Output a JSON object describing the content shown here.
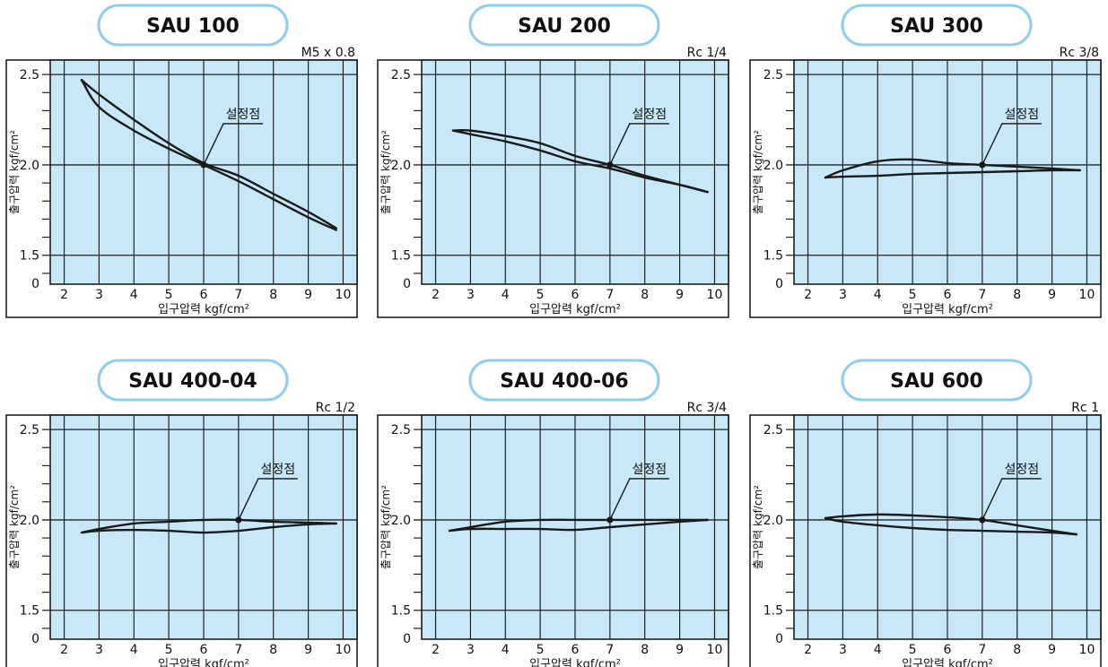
{
  "colors": {
    "plot_bg": "#c8e8f8",
    "pill_border": "#8fcdee",
    "line": "#1a1a1a",
    "frame": "#111111"
  },
  "common": {
    "xlabel": "입구압력 kgf/cm²",
    "ylabel": "출구압력 kgf/cm²",
    "set_point_label": "설정점",
    "y_zero_label": "0"
  },
  "chart_data": [
    {
      "type": "line",
      "title": "SAU 100",
      "port": "M5 x 0.8",
      "x_ticks": [
        2,
        3,
        4,
        5,
        6,
        7,
        8,
        9,
        10
      ],
      "xlim": [
        1.6,
        10.4
      ],
      "y_ticks": [
        1.5,
        2.0,
        2.5
      ],
      "ylim": [
        1.34,
        2.58
      ],
      "set_point": [
        6,
        2.0
      ],
      "series": [
        {
          "x": [
            2.5,
            3,
            4,
            5,
            6,
            7,
            8,
            9,
            9.8
          ],
          "y": [
            2.47,
            2.39,
            2.25,
            2.12,
            2.01,
            1.94,
            1.84,
            1.74,
            1.65
          ]
        },
        {
          "x": [
            2.5,
            3,
            4,
            5,
            6,
            7,
            8,
            9,
            9.8
          ],
          "y": [
            2.47,
            2.32,
            2.19,
            2.09,
            2.0,
            1.91,
            1.81,
            1.71,
            1.64
          ]
        }
      ]
    },
    {
      "type": "line",
      "title": "SAU 200",
      "port": "Rc 1/4",
      "x_ticks": [
        2,
        3,
        4,
        5,
        6,
        7,
        8,
        9,
        10
      ],
      "xlim": [
        1.6,
        10.4
      ],
      "y_ticks": [
        1.5,
        2.0,
        2.5
      ],
      "ylim": [
        1.34,
        2.58
      ],
      "set_point": [
        7,
        2.0
      ],
      "series": [
        {
          "x": [
            2.5,
            3,
            4,
            5,
            6,
            7,
            8,
            9,
            9.8
          ],
          "y": [
            2.19,
            2.19,
            2.16,
            2.12,
            2.05,
            2.0,
            1.94,
            1.89,
            1.85
          ]
        },
        {
          "x": [
            2.5,
            3,
            4,
            5,
            6,
            7,
            8,
            9,
            9.8
          ],
          "y": [
            2.19,
            2.17,
            2.13,
            2.08,
            2.02,
            1.98,
            1.93,
            1.89,
            1.85
          ]
        }
      ]
    },
    {
      "type": "line",
      "title": "SAU 300",
      "port": "Rc 3/8",
      "x_ticks": [
        2,
        3,
        4,
        5,
        6,
        7,
        8,
        9,
        10
      ],
      "xlim": [
        1.6,
        10.4
      ],
      "y_ticks": [
        1.5,
        2.0,
        2.5
      ],
      "ylim": [
        1.34,
        2.58
      ],
      "set_point": [
        7,
        2.0
      ],
      "series": [
        {
          "x": [
            2.5,
            3,
            4,
            5,
            6,
            7,
            8,
            9,
            9.8
          ],
          "y": [
            1.93,
            1.97,
            2.02,
            2.03,
            2.01,
            2.0,
            1.99,
            1.98,
            1.97
          ]
        },
        {
          "x": [
            2.5,
            3,
            4,
            5,
            6,
            7,
            8,
            9,
            9.8
          ],
          "y": [
            1.93,
            1.935,
            1.94,
            1.95,
            1.955,
            1.96,
            1.965,
            1.97,
            1.97
          ]
        }
      ]
    },
    {
      "type": "line",
      "title": "SAU 400-04",
      "port": "Rc 1/2",
      "x_ticks": [
        2,
        3,
        4,
        5,
        6,
        7,
        8,
        9,
        10
      ],
      "xlim": [
        1.6,
        10.4
      ],
      "y_ticks": [
        1.5,
        2.0,
        2.5
      ],
      "ylim": [
        1.34,
        2.58
      ],
      "set_point": [
        7,
        2.0
      ],
      "series": [
        {
          "x": [
            2.5,
            3,
            4,
            5,
            6,
            7,
            8,
            9,
            9.8
          ],
          "y": [
            1.93,
            1.95,
            1.98,
            1.99,
            2.0,
            2.0,
            1.99,
            1.985,
            1.98
          ]
        },
        {
          "x": [
            2.5,
            3,
            4,
            5,
            6,
            7,
            8,
            9,
            9.8
          ],
          "y": [
            1.93,
            1.94,
            1.945,
            1.94,
            1.93,
            1.94,
            1.96,
            1.975,
            1.98
          ]
        }
      ]
    },
    {
      "type": "line",
      "title": "SAU 400-06",
      "port": "Rc 3/4",
      "x_ticks": [
        2,
        3,
        4,
        5,
        6,
        7,
        8,
        9,
        10
      ],
      "xlim": [
        1.6,
        10.4
      ],
      "y_ticks": [
        1.5,
        2.0,
        2.5
      ],
      "ylim": [
        1.34,
        2.58
      ],
      "set_point": [
        7,
        2.0
      ],
      "series": [
        {
          "x": [
            2.4,
            3,
            4,
            5,
            6,
            7,
            8,
            9,
            9.8
          ],
          "y": [
            1.94,
            1.96,
            1.99,
            2.0,
            2.0,
            2.0,
            2.0,
            2.0,
            2.0
          ]
        },
        {
          "x": [
            2.4,
            3,
            4,
            5,
            6,
            7,
            8,
            9,
            9.8
          ],
          "y": [
            1.94,
            1.95,
            1.95,
            1.95,
            1.945,
            1.96,
            1.975,
            1.99,
            2.0
          ]
        }
      ]
    },
    {
      "type": "line",
      "title": "SAU 600",
      "port": "Rc 1",
      "x_ticks": [
        2,
        3,
        4,
        5,
        6,
        7,
        8,
        9,
        10
      ],
      "xlim": [
        1.6,
        10.4
      ],
      "y_ticks": [
        1.5,
        2.0,
        2.5
      ],
      "ylim": [
        1.34,
        2.58
      ],
      "set_point": [
        7,
        2.0
      ],
      "series": [
        {
          "x": [
            2.5,
            3,
            4,
            5,
            6,
            7,
            8,
            9,
            9.7
          ],
          "y": [
            2.01,
            2.02,
            2.03,
            2.025,
            2.015,
            2.0,
            1.97,
            1.94,
            1.92
          ]
        },
        {
          "x": [
            2.5,
            3,
            4,
            5,
            6,
            7,
            8,
            9,
            9.7
          ],
          "y": [
            2.01,
            1.99,
            1.97,
            1.955,
            1.945,
            1.94,
            1.935,
            1.93,
            1.92
          ]
        }
      ]
    }
  ]
}
